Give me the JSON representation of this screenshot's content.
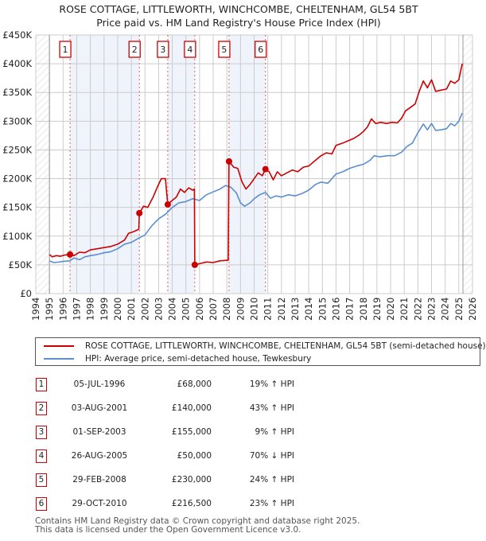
{
  "header": {
    "title_line1": "ROSE COTTAGE, LITTLEWORTH, WINCHCOMBE, CHELTENHAM, GL54 5BT",
    "title_line2": "Price paid vs. HM Land Registry's House Price Index (HPI)"
  },
  "colors": {
    "property": "#cc0000",
    "hpi": "#5b8fd0",
    "shade": "#eef3fc",
    "grid": "#cccccc",
    "sale_line": "#e06060"
  },
  "legend": {
    "property_label": "ROSE COTTAGE, LITTLEWORTH, WINCHCOMBE, CHELTENHAM, GL54 5BT (semi-detached house)",
    "hpi_label": "HPI: Average price, semi-detached house, Tewkesbury"
  },
  "sales": [
    {
      "num": "1",
      "date": "05-JUL-1996",
      "price": "£68,000",
      "hpi": "19% ↑ HPI"
    },
    {
      "num": "2",
      "date": "03-AUG-2001",
      "price": "£140,000",
      "hpi": "43% ↑ HPI"
    },
    {
      "num": "3",
      "date": "01-SEP-2003",
      "price": "£155,000",
      "hpi": "9% ↑ HPI"
    },
    {
      "num": "4",
      "date": "26-AUG-2005",
      "price": "£50,000",
      "hpi": "70% ↓ HPI"
    },
    {
      "num": "5",
      "date": "29-FEB-2008",
      "price": "£230,000",
      "hpi": "24% ↑ HPI"
    },
    {
      "num": "6",
      "date": "29-OCT-2010",
      "price": "£216,500",
      "hpi": "23% ↑ HPI"
    }
  ],
  "footer": {
    "line1": "Contains HM Land Registry data © Crown copyright and database right 2025.",
    "line2": "This data is licensed under the Open Government Licence v3.0."
  },
  "chart_data": {
    "type": "line",
    "title": "ROSE COTTAGE, LITTLEWORTH, WINCHCOMBE, CHELTENHAM, GL54 5BT — Price paid vs. HM Land Registry's House Price Index (HPI)",
    "xlabel": "",
    "ylabel": "",
    "xlim": [
      1994,
      2026
    ],
    "ylim": [
      0,
      450000
    ],
    "grid": true,
    "legend_position": "below",
    "x_ticks": [
      "1994",
      "1995",
      "1996",
      "1997",
      "1998",
      "1999",
      "2000",
      "2001",
      "2002",
      "2003",
      "2004",
      "2005",
      "2006",
      "2007",
      "2008",
      "2009",
      "2010",
      "2011",
      "2012",
      "2013",
      "2014",
      "2015",
      "2016",
      "2017",
      "2018",
      "2019",
      "2020",
      "2021",
      "2022",
      "2023",
      "2024",
      "2025",
      "2026"
    ],
    "y_ticks": [
      "£0",
      "£50K",
      "£100K",
      "£150K",
      "£200K",
      "£250K",
      "£300K",
      "£350K",
      "£400K",
      "£450K"
    ],
    "hatched_regions": [
      [
        1994,
        1995
      ],
      [
        2025.3,
        2026
      ]
    ],
    "shaded_regions": [
      [
        1996.51,
        2001.59
      ],
      [
        2003.67,
        2005.65
      ],
      [
        2008.16,
        2010.83
      ]
    ],
    "sale_markers": [
      {
        "num": 1,
        "x": 1996.51,
        "value": 68000
      },
      {
        "num": 2,
        "x": 2001.59,
        "value": 140000
      },
      {
        "num": 3,
        "x": 2003.67,
        "value": 155000
      },
      {
        "num": 4,
        "x": 2005.65,
        "value": 50000
      },
      {
        "num": 5,
        "x": 2008.16,
        "value": 230000
      },
      {
        "num": 6,
        "x": 2010.83,
        "value": 216500
      }
    ],
    "series": [
      {
        "name": "ROSE COTTAGE, LITTLEWORTH, WINCHCOMBE, CHELTENHAM, GL54 5BT (semi-detached house)",
        "color": "#cc0000",
        "points": [
          [
            1995.0,
            68000
          ],
          [
            1995.2,
            64000
          ],
          [
            1995.5,
            66000
          ],
          [
            1995.8,
            65000
          ],
          [
            1996.1,
            67000
          ],
          [
            1996.51,
            68000
          ],
          [
            1996.8,
            66000
          ],
          [
            1997.2,
            72000
          ],
          [
            1997.6,
            71000
          ],
          [
            1998.0,
            76000
          ],
          [
            1998.5,
            78000
          ],
          [
            1999.0,
            80000
          ],
          [
            1999.5,
            82000
          ],
          [
            2000.0,
            86000
          ],
          [
            2000.5,
            93000
          ],
          [
            2000.8,
            105000
          ],
          [
            2001.2,
            108000
          ],
          [
            2001.55,
            112000
          ],
          [
            2001.59,
            140000
          ],
          [
            2001.9,
            152000
          ],
          [
            2002.2,
            150000
          ],
          [
            2002.6,
            168000
          ],
          [
            2002.9,
            185000
          ],
          [
            2003.2,
            200000
          ],
          [
            2003.5,
            200000
          ],
          [
            2003.67,
            155000
          ],
          [
            2003.9,
            160000
          ],
          [
            2004.3,
            168000
          ],
          [
            2004.6,
            182000
          ],
          [
            2004.9,
            176000
          ],
          [
            2005.2,
            184000
          ],
          [
            2005.5,
            180000
          ],
          [
            2005.62,
            182000
          ],
          [
            2005.65,
            50000
          ],
          [
            2006.0,
            52000
          ],
          [
            2006.5,
            55000
          ],
          [
            2007.0,
            54000
          ],
          [
            2007.5,
            57000
          ],
          [
            2008.1,
            58000
          ],
          [
            2008.16,
            230000
          ],
          [
            2008.5,
            220000
          ],
          [
            2008.8,
            218000
          ],
          [
            2009.1,
            195000
          ],
          [
            2009.4,
            182000
          ],
          [
            2009.7,
            190000
          ],
          [
            2010.0,
            200000
          ],
          [
            2010.3,
            210000
          ],
          [
            2010.6,
            205000
          ],
          [
            2010.83,
            216500
          ],
          [
            2011.1,
            212000
          ],
          [
            2011.4,
            198000
          ],
          [
            2011.7,
            212000
          ],
          [
            2012.0,
            205000
          ],
          [
            2012.4,
            210000
          ],
          [
            2012.8,
            215000
          ],
          [
            2013.2,
            212000
          ],
          [
            2013.6,
            220000
          ],
          [
            2014.0,
            222000
          ],
          [
            2014.5,
            232000
          ],
          [
            2014.9,
            240000
          ],
          [
            2015.3,
            245000
          ],
          [
            2015.7,
            243000
          ],
          [
            2016.0,
            258000
          ],
          [
            2016.5,
            262000
          ],
          [
            2016.9,
            266000
          ],
          [
            2017.3,
            270000
          ],
          [
            2017.7,
            276000
          ],
          [
            2018.0,
            282000
          ],
          [
            2018.3,
            290000
          ],
          [
            2018.6,
            304000
          ],
          [
            2018.9,
            296000
          ],
          [
            2019.3,
            298000
          ],
          [
            2019.7,
            296000
          ],
          [
            2020.1,
            298000
          ],
          [
            2020.5,
            297000
          ],
          [
            2020.8,
            305000
          ],
          [
            2021.1,
            318000
          ],
          [
            2021.4,
            323000
          ],
          [
            2021.8,
            330000
          ],
          [
            2022.1,
            352000
          ],
          [
            2022.4,
            370000
          ],
          [
            2022.7,
            358000
          ],
          [
            2023.0,
            372000
          ],
          [
            2023.3,
            352000
          ],
          [
            2023.7,
            354000
          ],
          [
            2024.1,
            356000
          ],
          [
            2024.4,
            370000
          ],
          [
            2024.7,
            366000
          ],
          [
            2025.0,
            372000
          ],
          [
            2025.25,
            400000
          ]
        ]
      },
      {
        "name": "HPI: Average price, semi-detached house, Tewkesbury",
        "color": "#5b8fd0",
        "points": [
          [
            1995.0,
            57000
          ],
          [
            1995.3,
            54000
          ],
          [
            1995.7,
            55000
          ],
          [
            1996.0,
            56000
          ],
          [
            1996.5,
            57000
          ],
          [
            1996.8,
            62000
          ],
          [
            1997.2,
            59000
          ],
          [
            1997.6,
            64000
          ],
          [
            1998.0,
            66000
          ],
          [
            1998.5,
            68000
          ],
          [
            1999.0,
            71000
          ],
          [
            1999.5,
            73000
          ],
          [
            2000.0,
            78000
          ],
          [
            2000.5,
            86000
          ],
          [
            2001.0,
            89000
          ],
          [
            2001.5,
            96000
          ],
          [
            2002.0,
            102000
          ],
          [
            2002.5,
            118000
          ],
          [
            2003.0,
            130000
          ],
          [
            2003.5,
            138000
          ],
          [
            2004.0,
            150000
          ],
          [
            2004.5,
            158000
          ],
          [
            2005.0,
            160000
          ],
          [
            2005.5,
            165000
          ],
          [
            2006.0,
            162000
          ],
          [
            2006.5,
            172000
          ],
          [
            2007.0,
            177000
          ],
          [
            2007.5,
            182000
          ],
          [
            2007.9,
            188000
          ],
          [
            2008.3,
            185000
          ],
          [
            2008.7,
            175000
          ],
          [
            2009.0,
            158000
          ],
          [
            2009.3,
            152000
          ],
          [
            2009.7,
            158000
          ],
          [
            2010.0,
            165000
          ],
          [
            2010.4,
            172000
          ],
          [
            2010.83,
            176000
          ],
          [
            2011.2,
            166000
          ],
          [
            2011.6,
            170000
          ],
          [
            2012.0,
            168000
          ],
          [
            2012.5,
            172000
          ],
          [
            2013.0,
            170000
          ],
          [
            2013.5,
            174000
          ],
          [
            2014.0,
            180000
          ],
          [
            2014.5,
            190000
          ],
          [
            2014.9,
            194000
          ],
          [
            2015.4,
            192000
          ],
          [
            2016.0,
            208000
          ],
          [
            2016.5,
            212000
          ],
          [
            2017.0,
            218000
          ],
          [
            2017.5,
            222000
          ],
          [
            2018.0,
            225000
          ],
          [
            2018.5,
            232000
          ],
          [
            2018.8,
            240000
          ],
          [
            2019.2,
            238000
          ],
          [
            2019.8,
            240000
          ],
          [
            2020.3,
            240000
          ],
          [
            2020.8,
            246000
          ],
          [
            2021.2,
            256000
          ],
          [
            2021.6,
            262000
          ],
          [
            2022.0,
            280000
          ],
          [
            2022.4,
            295000
          ],
          [
            2022.7,
            285000
          ],
          [
            2023.0,
            296000
          ],
          [
            2023.3,
            284000
          ],
          [
            2023.7,
            285000
          ],
          [
            2024.1,
            287000
          ],
          [
            2024.4,
            296000
          ],
          [
            2024.7,
            292000
          ],
          [
            2025.0,
            300000
          ],
          [
            2025.25,
            314000
          ]
        ]
      }
    ]
  }
}
